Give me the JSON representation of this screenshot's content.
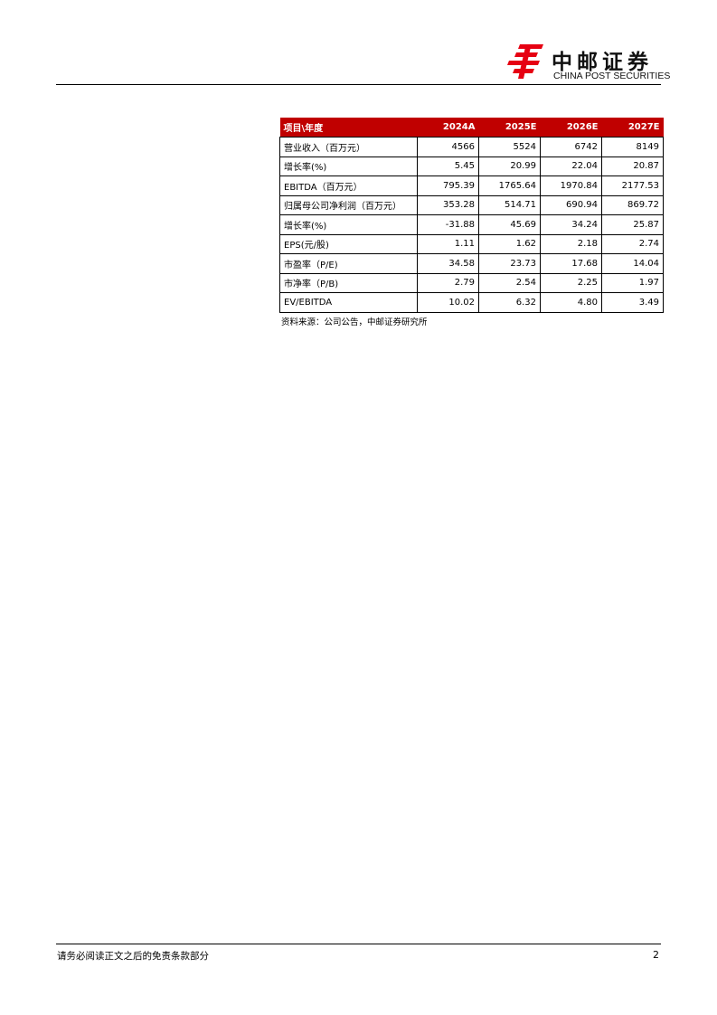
{
  "header": {
    "logo_cn": "中邮证券",
    "logo_en": "CHINA POST SECURITIES",
    "brand_color": "#c00000"
  },
  "table": {
    "columns": [
      "项目\\年度",
      "2024A",
      "2025E",
      "2026E",
      "2027E"
    ],
    "rows": [
      [
        "营业收入（百万元）",
        "4566",
        "5524",
        "6742",
        "8149"
      ],
      [
        "增长率(%)",
        "5.45",
        "20.99",
        "22.04",
        "20.87"
      ],
      [
        "EBITDA（百万元）",
        "795.39",
        "1765.64",
        "1970.84",
        "2177.53"
      ],
      [
        "归属母公司净利润（百万元）",
        "353.28",
        "514.71",
        "690.94",
        "869.72"
      ],
      [
        "增长率(%)",
        "-31.88",
        "45.69",
        "34.24",
        "25.87"
      ],
      [
        "EPS(元/股)",
        "1.11",
        "1.62",
        "2.18",
        "2.74"
      ],
      [
        "市盈率（P/E)",
        "34.58",
        "23.73",
        "17.68",
        "14.04"
      ],
      [
        "市净率（P/B)",
        "2.79",
        "2.54",
        "2.25",
        "1.97"
      ],
      [
        "EV/EBITDA",
        "10.02",
        "6.32",
        "4.80",
        "3.49"
      ]
    ],
    "source": "资料来源：公司公告，中邮证券研究所"
  },
  "footer": {
    "disclaimer": "请务必阅读正文之后的免责条款部分",
    "page_number": "2"
  }
}
